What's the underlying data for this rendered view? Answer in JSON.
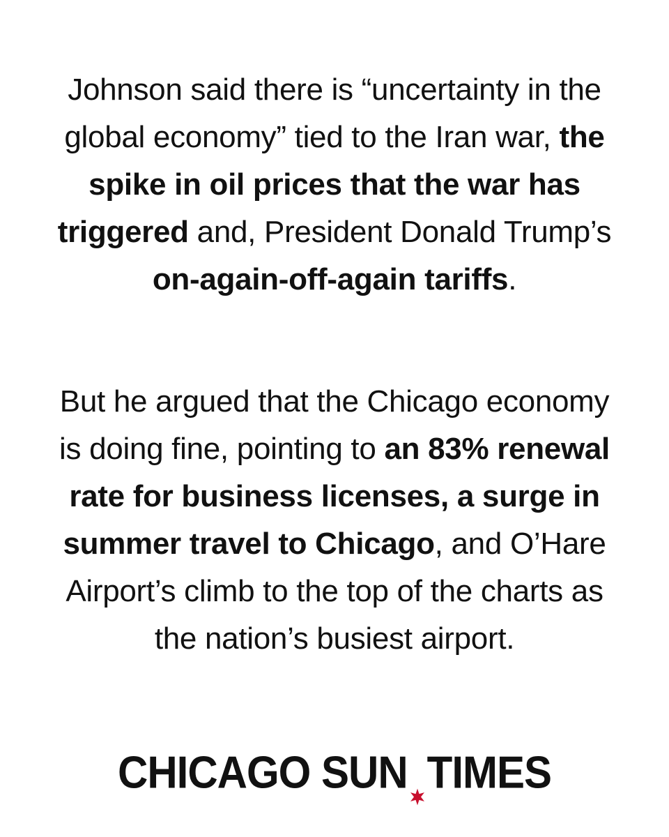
{
  "paragraph1": {
    "t1": "Johnson said there is “uncertainty in the global economy” tied to the Iran war, ",
    "b1": "the spike in oil prices that the war has triggered",
    "t2": " and, President Donald Trump’s ",
    "b2": "on-again-off-again tariffs",
    "t3": "."
  },
  "paragraph2": {
    "t1": "But he argued that the Chicago economy is doing fine, pointing to ",
    "b1": "an 83% renewal rate for business licenses, a surge in summer travel to Chicago",
    "t2": ", and O’Hare Airport’s climb to the top of the charts as the nation’s busiest airport."
  },
  "logo": {
    "left": "CHICAGO SUN",
    "right": "TIMES",
    "star_icon": "six-point-star-icon",
    "star_color": "#c8102e"
  },
  "colors": {
    "text": "#111111",
    "background": "#ffffff"
  }
}
